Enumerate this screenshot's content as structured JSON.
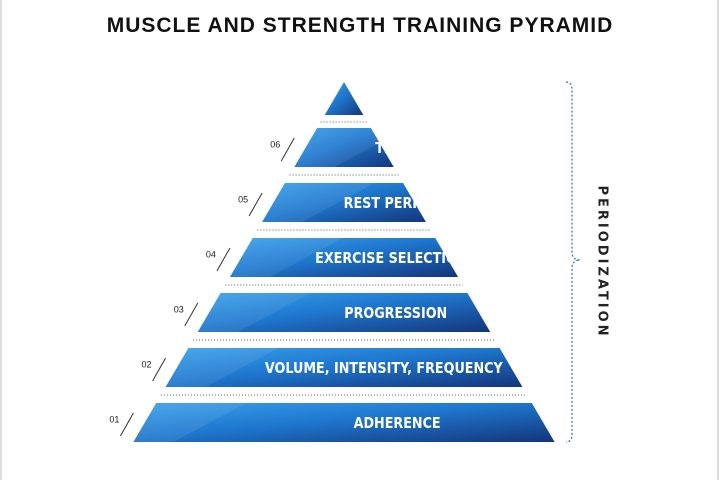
{
  "header": {
    "title": "MUSCLE AND STRENGTH TRAINING PYRAMID"
  },
  "levels": [
    {
      "number": "01",
      "label": "ADHERENCE"
    },
    {
      "number": "02",
      "label": "VOLUME, INTENSITY, FREQUENCY"
    },
    {
      "number": "03",
      "label": "PROGRESSION"
    },
    {
      "number": "04",
      "label": "EXERCISE SELECTION"
    },
    {
      "number": "05",
      "label": "REST PERIODS"
    },
    {
      "number": "06",
      "label": "TEMPO"
    }
  ],
  "side_label": "PERIODIZATION"
}
